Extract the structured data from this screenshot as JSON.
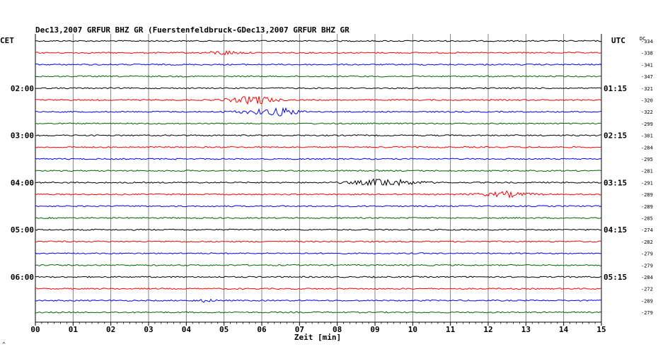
{
  "header": {
    "title": "Dec13,2007   GRFUR BHZ GR (Fuerstenfeldbruck-GDec13,2007   GRFUR BHZ GR"
  },
  "left_label": "CET",
  "right_label": "UTC",
  "dc_label": "DC",
  "corner_mark": "^",
  "chart_data": {
    "type": "line",
    "title": "Dec13,2007   GRFUR BHZ GR (Fuerstenfeldbruck-GDec13,2007   GRFUR BHZ GR",
    "xlabel": "Zeit [min]",
    "xlim": [
      0,
      15
    ],
    "x_ticks": [
      "00",
      "01",
      "02",
      "03",
      "04",
      "05",
      "06",
      "07",
      "08",
      "09",
      "10",
      "11",
      "12",
      "13",
      "14",
      "15"
    ],
    "grid": true,
    "left_time_labels": [
      {
        "row": 4,
        "label": "02:00"
      },
      {
        "row": 8,
        "label": "03:00"
      },
      {
        "row": 12,
        "label": "04:00"
      },
      {
        "row": 16,
        "label": "05:00"
      },
      {
        "row": 20,
        "label": "06:00"
      }
    ],
    "right_time_labels": [
      {
        "row": 4,
        "label": "01:15"
      },
      {
        "row": 8,
        "label": "02:15"
      },
      {
        "row": 12,
        "label": "03:15"
      },
      {
        "row": 16,
        "label": "04:15"
      },
      {
        "row": 20,
        "label": "05:15"
      }
    ],
    "trace_colors": [
      "#000000",
      "#ff0000",
      "#0000ff",
      "#006400"
    ],
    "dc_offsets": [
      "334",
      "338",
      "341",
      "347",
      "321",
      "320",
      "322",
      "299",
      "301",
      "284",
      "295",
      "281",
      "291",
      "289",
      "289",
      "285",
      "274",
      "282",
      "279",
      "279",
      "284",
      "272",
      "289",
      "279"
    ],
    "events": [
      {
        "row": 1,
        "start_min": 4.0,
        "end_min": 6.0,
        "peak_min": 5.0,
        "amplitude": 3
      },
      {
        "row": 5,
        "start_min": 4.4,
        "end_min": 6.8,
        "peak_min": 5.9,
        "amplitude": 7
      },
      {
        "row": 6,
        "start_min": 4.4,
        "end_min": 7.4,
        "peak_min": 6.6,
        "amplitude": 6
      },
      {
        "row": 12,
        "start_min": 7.6,
        "end_min": 11.0,
        "peak_min": 9.25,
        "amplitude": 6
      },
      {
        "row": 13,
        "start_min": 11.0,
        "end_min": 13.8,
        "peak_min": 12.5,
        "amplitude": 4
      },
      {
        "row": 22,
        "start_min": 4.0,
        "end_min": 5.2,
        "peak_min": 4.5,
        "amplitude": 2
      }
    ]
  }
}
